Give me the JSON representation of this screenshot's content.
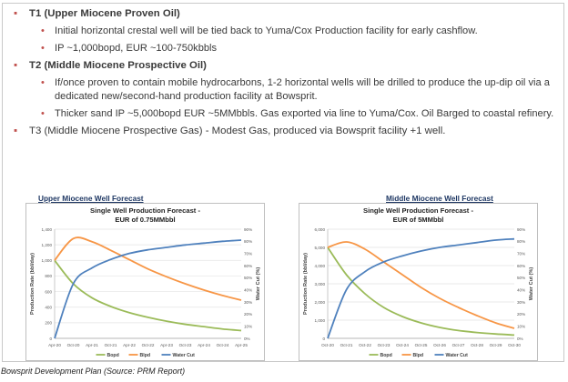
{
  "bullets": [
    {
      "text": "T1 (Upper Miocene Proven Oil)",
      "children": [
        "Initial horizontal crestal well will be tied back to Yuma/Cox Production facility for early cashflow.",
        "IP ~1,000bopd, EUR ~100-750kbbls"
      ]
    },
    {
      "text": "T2 (Middle Miocene Prospective Oil)",
      "children": [
        "If/once proven to contain mobile hydrocarbons, 1-2 horizontal wells will be drilled to produce the up-dip oil via a dedicated new/second-hand production facility at Bowsprit.",
        "Thicker sand IP ~5,000bopd EUR ~5MMbbls. Gas exported via line to Yuma/Cox. Oil Barged to coastal refinery."
      ]
    },
    {
      "text": "T3 (Middle Miocene Prospective Gas) - Modest Gas, produced via Bowsprit facility +1 well.",
      "children": []
    }
  ],
  "footer": "Bowsprit Development Plan (Source: PRM Report)",
  "colors": {
    "bopd": "#9bbb59",
    "blpd": "#f79646",
    "water_cut": "#4f81bd",
    "bullet_marker": "#c0504d"
  },
  "chart_data": [
    {
      "type": "line",
      "heading": "Upper Miocene Well Forecast",
      "title": "Single Well Production Forecast -",
      "subtitle": "EUR of 0.75MMbbl",
      "ylabel": "Production Rate (bbl/day)",
      "y2label": "Water Cut (%)",
      "ylim": [
        0,
        1400
      ],
      "y_ticks": [
        "0",
        "200",
        "400",
        "600",
        "800",
        "1,000",
        "1,200",
        "1,400"
      ],
      "y2lim": [
        0,
        90
      ],
      "y2_ticks": [
        "0%",
        "10%",
        "20%",
        "30%",
        "40%",
        "50%",
        "60%",
        "70%",
        "80%",
        "90%"
      ],
      "categories": [
        "Apr-20",
        "Oct-20",
        "Apr-21",
        "Oct-21",
        "Apr-22",
        "Oct-22",
        "Apr-23",
        "Oct-23",
        "Apr-24",
        "Oct-24",
        "Apr-25"
      ],
      "grid": true,
      "legend": "bottom",
      "series": [
        {
          "name": "Bopd",
          "axis": "left",
          "values": [
            1000,
            700,
            520,
            410,
            330,
            270,
            220,
            180,
            150,
            120,
            100
          ]
        },
        {
          "name": "Blpd",
          "axis": "left",
          "values": [
            1000,
            1280,
            1240,
            1130,
            1010,
            890,
            790,
            700,
            620,
            550,
            490
          ]
        },
        {
          "name": "Water Cut",
          "axis": "right",
          "values": [
            0,
            45,
            58,
            65,
            70,
            73,
            75,
            77,
            78.5,
            80,
            81
          ]
        }
      ]
    },
    {
      "type": "line",
      "heading": "Middle Miocene Well Forecast",
      "title": "Single Well Production Forecast -",
      "subtitle": "EUR of 5MMbbl",
      "ylabel": "Production Rate (bbl/day)",
      "y2label": "Water Cut (%)",
      "ylim": [
        0,
        6000
      ],
      "y_ticks": [
        "0",
        "1,000",
        "2,000",
        "3,000",
        "4,000",
        "5,000",
        "6,000"
      ],
      "y2lim": [
        0,
        90
      ],
      "y2_ticks": [
        "0%",
        "10%",
        "20%",
        "30%",
        "40%",
        "50%",
        "60%",
        "70%",
        "80%",
        "90%"
      ],
      "categories": [
        "Oct-20",
        "Oct-21",
        "Oct-22",
        "Oct-23",
        "Oct-24",
        "Oct-25",
        "Oct-26",
        "Oct-27",
        "Oct-28",
        "Oct-29",
        "Oct-30"
      ],
      "grid": true,
      "legend": "bottom",
      "series": [
        {
          "name": "Bopd",
          "axis": "left",
          "values": [
            5000,
            3500,
            2450,
            1700,
            1200,
            850,
            600,
            430,
            320,
            240,
            180
          ]
        },
        {
          "name": "Blpd",
          "axis": "left",
          "values": [
            5000,
            5300,
            4900,
            4200,
            3500,
            2800,
            2200,
            1700,
            1250,
            850,
            550
          ]
        },
        {
          "name": "Water Cut",
          "axis": "right",
          "values": [
            0,
            40,
            55,
            63,
            68,
            72,
            75,
            77,
            79,
            81,
            82
          ]
        }
      ]
    }
  ]
}
